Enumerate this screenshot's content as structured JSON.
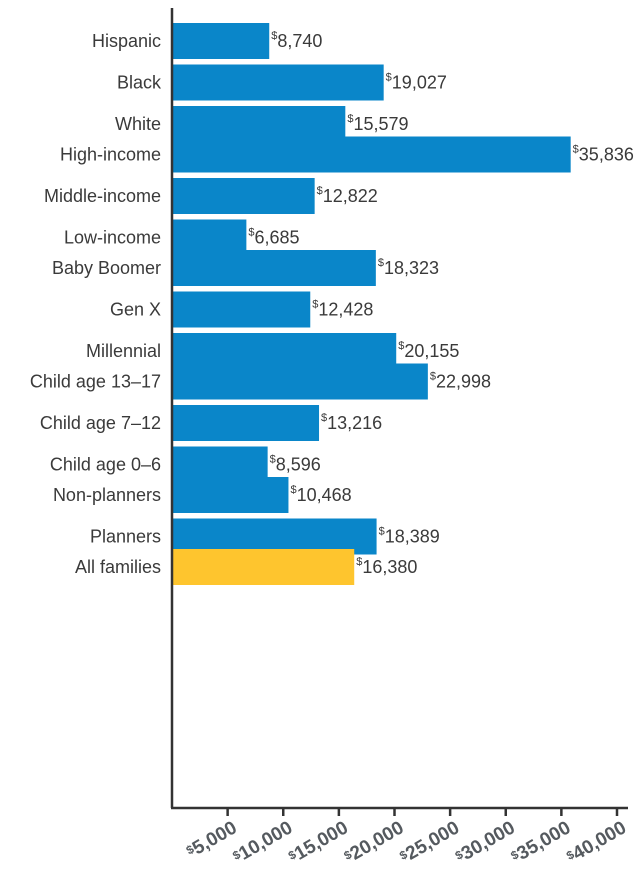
{
  "chart_data": {
    "type": "bar",
    "orientation": "horizontal",
    "currency_symbol": "$",
    "categories": [
      "Hispanic",
      "Black",
      "White",
      "High-income",
      "Middle-income",
      "Low-income",
      "Baby Boomer",
      "Gen X",
      "Millennial",
      "Child age 13–17",
      "Child age 7–12",
      "Child age 0–6",
      "Non-planners",
      "Planners",
      "All families"
    ],
    "values": [
      8740,
      19027,
      15579,
      35836,
      12822,
      6685,
      18323,
      12428,
      20155,
      22998,
      13216,
      8596,
      10468,
      18389,
      16380
    ],
    "value_labels": [
      "8,740",
      "19,027",
      "15,579",
      "35,836",
      "12,822",
      "6,685",
      "18,323",
      "12,428",
      "20,155",
      "22,998",
      "13,216",
      "8,596",
      "10,468",
      "18,389",
      "16,380"
    ],
    "groups": [
      [
        "Hispanic",
        "Black",
        "White"
      ],
      [
        "High-income",
        "Middle-income",
        "Low-income"
      ],
      [
        "Baby Boomer",
        "Gen X",
        "Millennial"
      ],
      [
        "Child age 13–17",
        "Child age 7–12",
        "Child age 0–6"
      ],
      [
        "Non-planners",
        "Planners"
      ],
      [
        "All families"
      ]
    ],
    "highlight_category": "All families",
    "x_ticks": [
      5000,
      10000,
      15000,
      20000,
      25000,
      30000,
      35000,
      40000
    ],
    "x_tick_labels": [
      "5,000",
      "10,000",
      "15,000",
      "20,000",
      "25,000",
      "30,000",
      "35,000",
      "40,000"
    ],
    "xlim": [
      0,
      42000
    ],
    "title": "",
    "xlabel": "",
    "ylabel": "",
    "grid": false,
    "legend": "none",
    "colors": {
      "bar": "#0a86c9",
      "highlight": "#fec52e",
      "axis": "#333333",
      "text": "#3a3a3a",
      "tick_text": "#555a5f"
    }
  }
}
